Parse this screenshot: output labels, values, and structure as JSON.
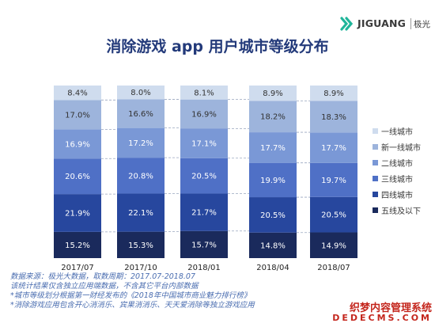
{
  "logo": {
    "brand": "JIGUANG",
    "cn": "极光"
  },
  "colors": {
    "一线城市": "#cfdcee",
    "新一线城市": "#9db4dc",
    "二线城市": "#7a98d6",
    "三线城市": "#4f70c6",
    "四线城市": "#27479e",
    "五线及以下": "#1a2a5c"
  },
  "chart_data": {
    "type": "bar",
    "stacked": true,
    "title": "消除游戏 app 用户城市等级分布",
    "categories": [
      "2017/07",
      "2017/10",
      "2018/01",
      "2018/04",
      "2018/07"
    ],
    "ylim": [
      0,
      100
    ],
    "legend_position": "right",
    "series": [
      {
        "name": "五线及以下",
        "values": [
          15.2,
          15.3,
          15.7,
          14.8,
          14.9
        ],
        "labels": [
          "15.2%",
          "15.3%",
          "15.7%",
          "14.8%",
          "14.9%"
        ]
      },
      {
        "name": "四线城市",
        "values": [
          21.9,
          22.1,
          21.7,
          20.5,
          20.5
        ],
        "labels": [
          "21.9%",
          "22.1%",
          "21.7%",
          "20.5%",
          "20.5%"
        ]
      },
      {
        "name": "三线城市",
        "values": [
          20.6,
          20.8,
          20.5,
          19.9,
          19.7
        ],
        "labels": [
          "20.6%",
          "20.8%",
          "20.5%",
          "19.9%",
          "19.7%"
        ]
      },
      {
        "name": "二线城市",
        "values": [
          16.9,
          17.2,
          17.1,
          17.7,
          17.7
        ],
        "labels": [
          "16.9%",
          "17.2%",
          "17.1%",
          "17.7%",
          "17.7%"
        ]
      },
      {
        "name": "新一线城市",
        "values": [
          17.0,
          16.6,
          16.9,
          18.2,
          18.3
        ],
        "labels": [
          "17.0%",
          "16.6%",
          "16.9%",
          "18.2%",
          "18.3%"
        ]
      },
      {
        "name": "一线城市",
        "values": [
          8.4,
          8.0,
          8.1,
          8.9,
          8.9
        ],
        "labels": [
          "8.4%",
          "8.0%",
          "8.1%",
          "8.9%",
          "8.9%"
        ]
      }
    ],
    "legend": [
      "一线城市",
      "新一线城市",
      "二线城市",
      "三线城市",
      "四线城市",
      "五线及以下"
    ]
  },
  "notes": [
    "数据来源：极光大数据，取数周期：2017.07-2018.07",
    "该统计结果仅含独立应用端数据，不含其它平台内部数据",
    "*城市等级划分根据第一财经发布的《2018年中国城市商业魅力排行榜》",
    "*消除游戏应用包含开心消消乐、宾果消消乐、天天爱消除等独立游戏应用"
  ],
  "watermark": {
    "line1": "织梦内容管理系统",
    "line2": "DEDECMS.COM"
  }
}
